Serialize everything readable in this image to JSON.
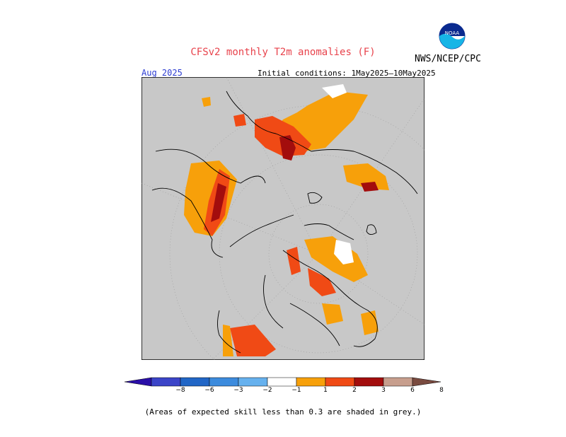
{
  "header": {
    "title": "CFSv2 monthly T2m anomalies (F)",
    "agency": "NWS/NCEP/CPC",
    "month": "Aug 2025",
    "initial_conditions": "Initial conditions: 1May2025–10May2025",
    "logo_text": "NOAA"
  },
  "footer": {
    "note": "(Areas of expected skill less than 0.3 are shaded in grey.)"
  },
  "colorbar": {
    "ticks": [
      "−8",
      "−6",
      "−3",
      "−2",
      "−1",
      "1",
      "2",
      "3",
      "6",
      "8"
    ],
    "colors": [
      "#2a0fa8",
      "#3b44c8",
      "#2166c6",
      "#3c8bdd",
      "#66b1ee",
      "#ffffff",
      "#f7a00a",
      "#f04a15",
      "#a30d0d",
      "#c79e8d",
      "#7a4b40"
    ]
  },
  "map": {
    "background": "#c8c8c8",
    "projection": "north polar stereographic"
  }
}
